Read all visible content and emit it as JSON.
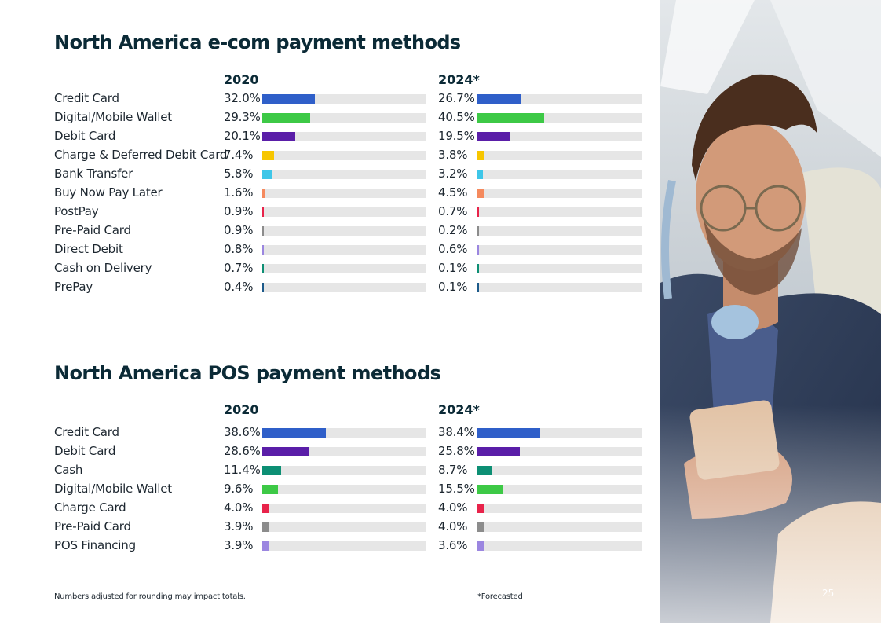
{
  "ecom": {
    "title": "North America e-com payment methods",
    "col_2020": "2020",
    "col_2024": "2024*"
  },
  "pos": {
    "title": "North America POS payment methods",
    "col_2020": "2020",
    "col_2024": "2024*"
  },
  "footnotes": {
    "rounding": "Numbers adjusted for rounding may impact totals.",
    "forecast": "*Forecasted"
  },
  "page_number": "25",
  "photo_icon": "man-with-phone-photo",
  "chart_data": [
    {
      "type": "bar",
      "title": "North America e-com payment methods",
      "xlabel": "",
      "ylabel": "",
      "ylim": [
        0,
        100
      ],
      "categories": [
        "Credit Card",
        "Digital/Mobile Wallet",
        "Debit Card",
        "Charge & Deferred Debit Card",
        "Bank Transfer",
        "Buy Now Pay Later",
        "PostPay",
        "Pre-Paid Card",
        "Direct Debit",
        "Cash on Delivery",
        "PrePay"
      ],
      "colors": [
        "#2f5fc9",
        "#3dc946",
        "#5a1ea8",
        "#f7c600",
        "#3ec6e8",
        "#f58a5e",
        "#e8234a",
        "#8c8c8c",
        "#9b86e0",
        "#0d8f74",
        "#1c5a8a"
      ],
      "series": [
        {
          "name": "2020",
          "values": [
            32.0,
            29.3,
            20.1,
            7.4,
            5.8,
            1.6,
            0.9,
            0.9,
            0.8,
            0.7,
            0.4
          ],
          "labels": [
            "32.0%",
            "29.3%",
            "20.1%",
            "7.4%",
            "5.8%",
            "1.6%",
            "0.9%",
            "0.9%",
            "0.8%",
            "0.7%",
            "0.4%"
          ]
        },
        {
          "name": "2024*",
          "values": [
            26.7,
            40.5,
            19.5,
            3.8,
            3.2,
            4.5,
            0.7,
            0.2,
            0.6,
            0.1,
            0.1
          ],
          "labels": [
            "26.7%",
            "40.5%",
            "19.5%",
            "3.8%",
            "3.2%",
            "4.5%",
            "0.7%",
            "0.2%",
            "0.6%",
            "0.1%",
            "0.1%"
          ]
        }
      ]
    },
    {
      "type": "bar",
      "title": "North America POS payment methods",
      "xlabel": "",
      "ylabel": "",
      "ylim": [
        0,
        100
      ],
      "categories": [
        "Credit Card",
        "Debit Card",
        "Cash",
        "Digital/Mobile Wallet",
        "Charge Card",
        "Pre-Paid Card",
        "POS Financing"
      ],
      "colors": [
        "#2f5fc9",
        "#5a1ea8",
        "#0d8f74",
        "#3dc946",
        "#e8234a",
        "#8c8c8c",
        "#9b86e0"
      ],
      "series": [
        {
          "name": "2020",
          "values": [
            38.6,
            28.6,
            11.4,
            9.6,
            4.0,
            3.9,
            3.9
          ],
          "labels": [
            "38.6%",
            "28.6%",
            "11.4%",
            "9.6%",
            "4.0%",
            "3.9%",
            "3.9%"
          ]
        },
        {
          "name": "2024*",
          "values": [
            38.4,
            25.8,
            8.7,
            15.5,
            4.0,
            4.0,
            3.6
          ],
          "labels": [
            "38.4%",
            "25.8%",
            "8.7%",
            "15.5%",
            "4.0%",
            "4.0%",
            "3.6%"
          ]
        }
      ]
    }
  ]
}
